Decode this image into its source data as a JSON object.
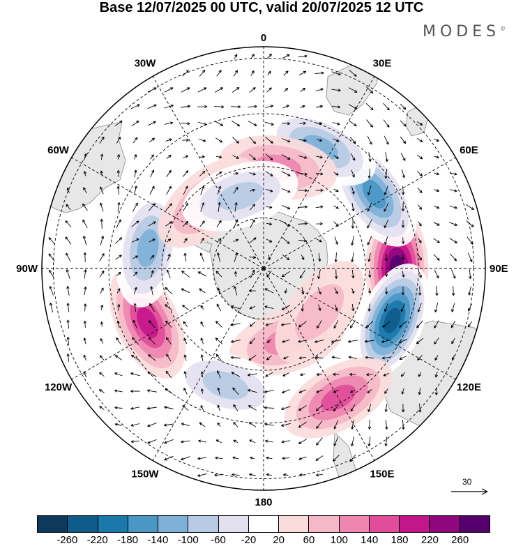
{
  "title": "Base 12/07/2025 00 UTC, valid 20/07/2025 12 UTC",
  "brand": "MODES",
  "brand_mark": "©",
  "longitude_labels": [
    "0",
    "30E",
    "60E",
    "90E",
    "120E",
    "150E",
    "180",
    "150W",
    "120W",
    "90W",
    "60W",
    "30W"
  ],
  "wind_reference": {
    "value": "30"
  },
  "colorbar": {
    "ticks": [
      "-260",
      "-220",
      "-180",
      "-140",
      "-100",
      "-60",
      "-20",
      "20",
      "60",
      "100",
      "140",
      "180",
      "220",
      "260"
    ],
    "colors": [
      "#0d3a5c",
      "#0f5b8c",
      "#1b78ad",
      "#4a97c6",
      "#7fb1d8",
      "#b7cbe4",
      "#e3e1f0",
      "#ffffff",
      "#fbdcdc",
      "#f6b8c8",
      "#ee86b1",
      "#e14d9a",
      "#c4168b",
      "#8f077f",
      "#56006e"
    ]
  },
  "anomalies": [
    {
      "lon": 90,
      "colat": 26,
      "value": 240
    },
    {
      "lon": 112,
      "colat": 27,
      "value": -270
    },
    {
      "lon": 56,
      "colat": 26,
      "value": -170
    },
    {
      "lon": 25,
      "colat": 26,
      "value": -120
    },
    {
      "lon": 8,
      "colat": 20,
      "value": 110
    },
    {
      "lon": 150,
      "colat": 29,
      "value": 150
    },
    {
      "lon": 162,
      "colat": 15,
      "value": 90
    },
    {
      "lon": -162,
      "colat": 24,
      "value": -110
    },
    {
      "lon": -115,
      "colat": 25,
      "value": 180
    },
    {
      "lon": -80,
      "colat": 23,
      "value": -120
    },
    {
      "lon": -40,
      "colat": 17,
      "value": 90
    },
    {
      "lon": -18,
      "colat": 15,
      "value": -80
    },
    {
      "lon": 128,
      "colat": 14,
      "value": 70
    }
  ]
}
